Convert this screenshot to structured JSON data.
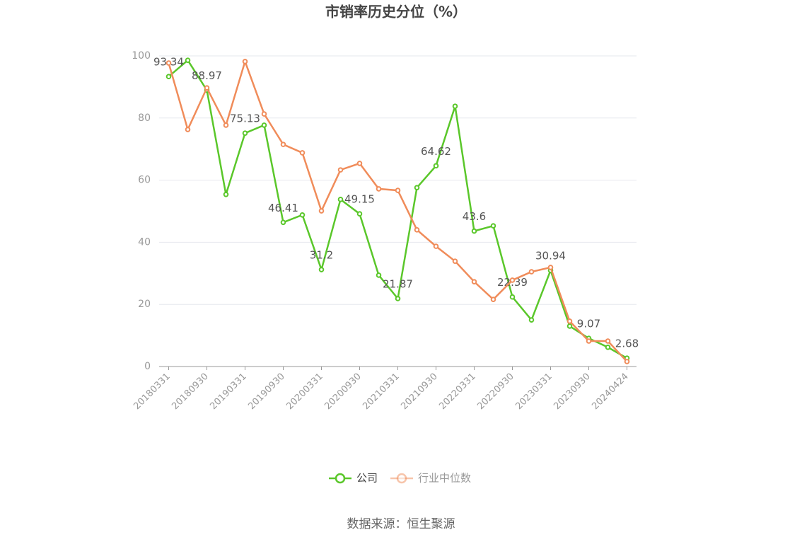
{
  "chart_data": {
    "type": "line",
    "title": "市销率历史分位（%）",
    "categories": [
      "20180331",
      null,
      "20180930",
      null,
      "20190331",
      null,
      "20190930",
      null,
      "20200331",
      null,
      "20200930",
      null,
      "20210331",
      null,
      "20210930",
      null,
      "20220331",
      null,
      "20220930",
      null,
      "20230331",
      null,
      "20230930",
      null,
      "20240424"
    ],
    "series": [
      {
        "name": "公司",
        "color": "#5ac72a",
        "values": [
          93.34,
          98.6,
          88.97,
          55.4,
          75.13,
          77.7,
          46.41,
          48.8,
          31.2,
          53.8,
          49.15,
          29.4,
          21.87,
          57.6,
          64.62,
          83.8,
          43.6,
          45.3,
          22.39,
          15.0,
          30.94,
          13.0,
          9.07,
          6.2,
          2.68
        ]
      },
      {
        "name": "行业中位数",
        "color": "#f08c5a",
        "values": [
          97.7,
          76.3,
          89.7,
          77.7,
          98.2,
          81.3,
          71.5,
          68.8,
          50.1,
          63.3,
          65.4,
          57.2,
          56.7,
          44.0,
          38.7,
          33.9,
          27.3,
          21.6,
          27.8,
          30.5,
          31.9,
          14.6,
          8.2,
          8.2,
          1.6
        ]
      }
    ],
    "ylim": [
      0,
      100
    ],
    "yticks": [
      0,
      20,
      40,
      60,
      80,
      100
    ],
    "grid": true,
    "source": "数据来源：恒生聚源"
  }
}
